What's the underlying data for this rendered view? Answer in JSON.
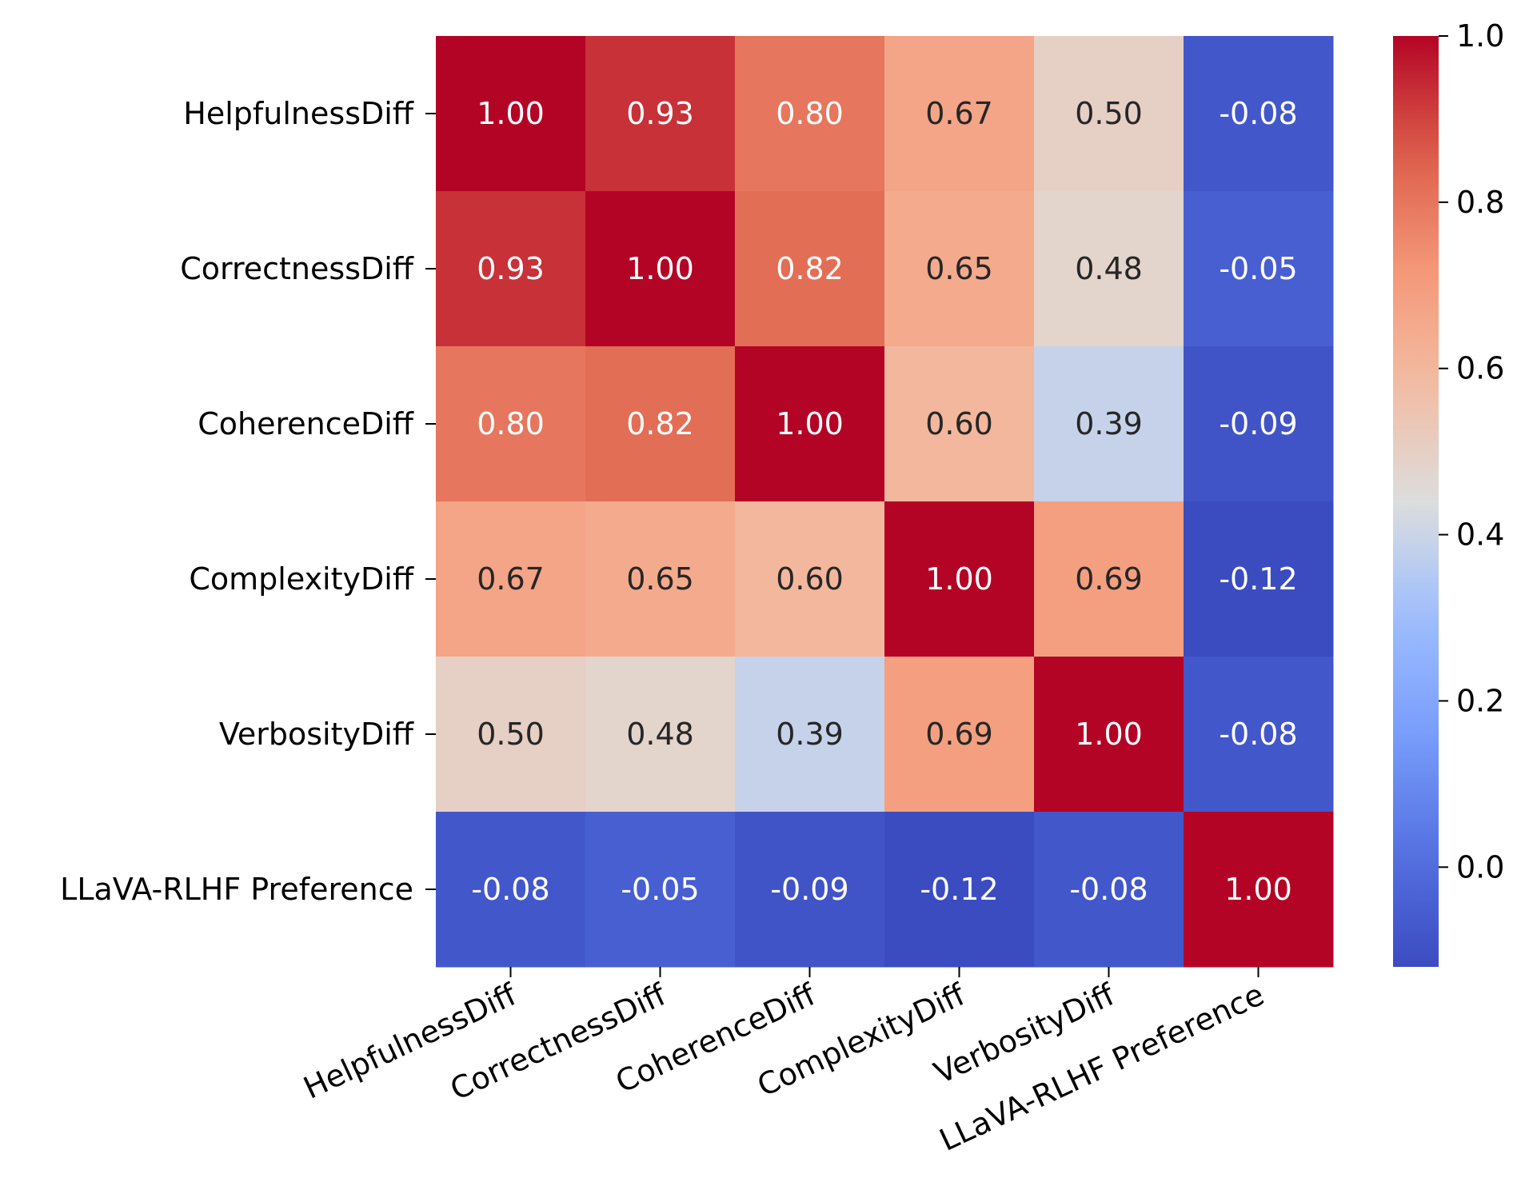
{
  "chart_data": {
    "type": "heatmap",
    "title": "",
    "xlabel": "",
    "ylabel": "",
    "rows": [
      "HelpfulnessDiff",
      "CorrectnessDiff",
      "CoherenceDiff",
      "ComplexityDiff",
      "VerbosityDiff",
      "LLaVA-RLHF Preference"
    ],
    "columns": [
      "HelpfulnessDiff",
      "CorrectnessDiff",
      "CoherenceDiff",
      "ComplexityDiff",
      "VerbosityDiff",
      "LLaVA-RLHF Preference"
    ],
    "values": [
      [
        1.0,
        0.93,
        0.8,
        0.67,
        0.5,
        -0.08
      ],
      [
        0.93,
        1.0,
        0.82,
        0.65,
        0.48,
        -0.05
      ],
      [
        0.8,
        0.82,
        1.0,
        0.6,
        0.39,
        -0.09
      ],
      [
        0.67,
        0.65,
        0.6,
        1.0,
        0.69,
        -0.12
      ],
      [
        0.5,
        0.48,
        0.39,
        0.69,
        1.0,
        -0.08
      ],
      [
        -0.08,
        -0.05,
        -0.09,
        -0.12,
        -0.08,
        1.0
      ]
    ],
    "value_format": "0.00",
    "colormap": "coolwarm",
    "colorbar": {
      "vmin": -0.12,
      "vmax": 1.0,
      "ticks": [
        0.0,
        0.2,
        0.4,
        0.6,
        0.8,
        1.0
      ],
      "tick_labels": [
        "0.0",
        "0.2",
        "0.4",
        "0.6",
        "0.8",
        "1.0"
      ]
    },
    "x_tick_rotation_deg": 25
  }
}
